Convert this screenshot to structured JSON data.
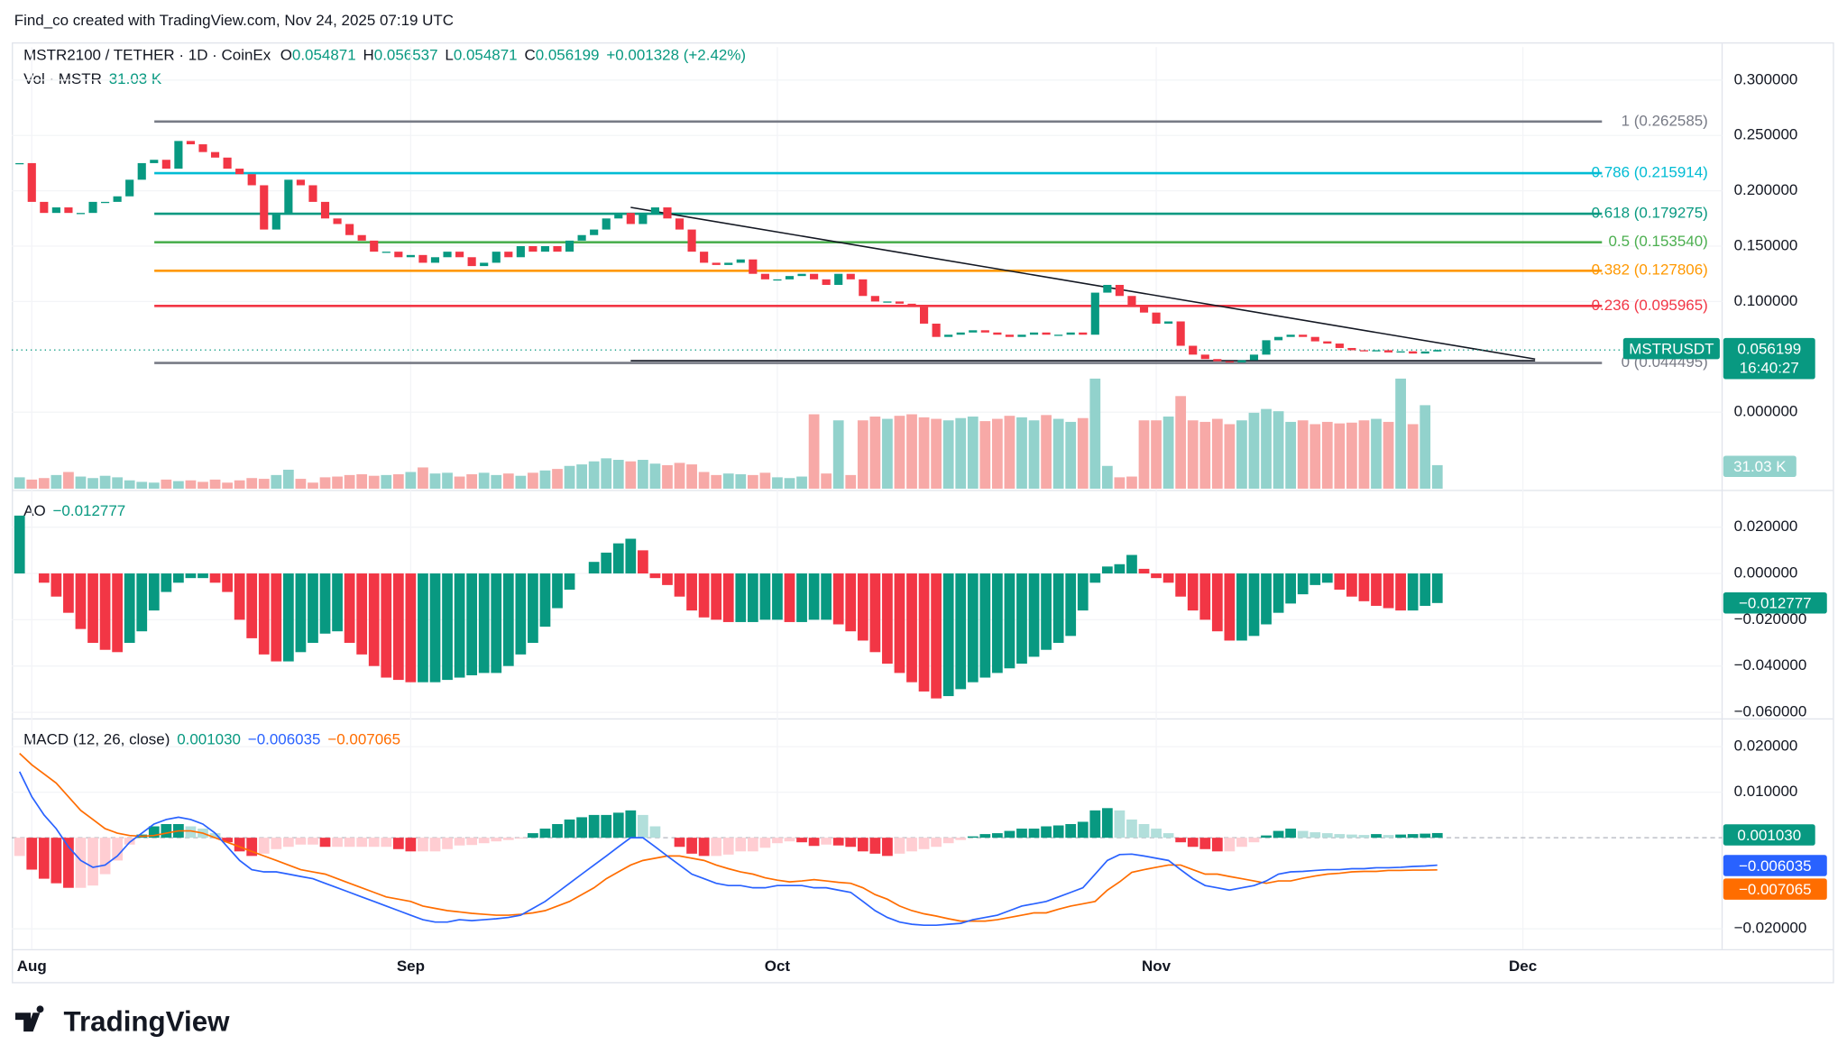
{
  "watermark": "Find_co created with TradingView.com, Nov 24, 2025 07:19 UTC",
  "logo": "TradingView",
  "chart_data": [
    {
      "type": "candlestick",
      "title": "MSTR2100 / TETHER · 1D · CoinEx",
      "ohlc_labels": [
        "O",
        "H",
        "L",
        "C"
      ],
      "ohlc": [
        0.054871,
        0.056537,
        0.054871,
        0.056199
      ],
      "change": "+0.001328 (+2.42%)",
      "symbol_tag": "MSTRUSDT",
      "price_tag": "0.056199",
      "countdown": "16:40:27",
      "up_color": "#089981",
      "down_color": "#f23645",
      "close": [
        0.225,
        0.19,
        0.18,
        0.185,
        0.18,
        0.18,
        0.19,
        0.19,
        0.195,
        0.21,
        0.225,
        0.228,
        0.22,
        0.245,
        0.242,
        0.235,
        0.23,
        0.22,
        0.215,
        0.205,
        0.165,
        0.18,
        0.21,
        0.205,
        0.19,
        0.175,
        0.17,
        0.16,
        0.155,
        0.145,
        0.145,
        0.14,
        0.142,
        0.135,
        0.14,
        0.145,
        0.14,
        0.132,
        0.135,
        0.145,
        0.14,
        0.15,
        0.145,
        0.15,
        0.145,
        0.155,
        0.16,
        0.165,
        0.175,
        0.18,
        0.17,
        0.18,
        0.185,
        0.175,
        0.165,
        0.145,
        0.135,
        0.133,
        0.135,
        0.138,
        0.125,
        0.12,
        0.12,
        0.123,
        0.125,
        0.12,
        0.115,
        0.125,
        0.12,
        0.105,
        0.1,
        0.1,
        0.098,
        0.095,
        0.08,
        0.068,
        0.07,
        0.072,
        0.074,
        0.072,
        0.07,
        0.068,
        0.07,
        0.072,
        0.07,
        0.07,
        0.072,
        0.07,
        0.108,
        0.115,
        0.105,
        0.095,
        0.09,
        0.08,
        0.082,
        0.06,
        0.052,
        0.048,
        0.046,
        0.045,
        0.047,
        0.052,
        0.065,
        0.068,
        0.07,
        0.068,
        0.064,
        0.062,
        0.058,
        0.056,
        0.055,
        0.056,
        0.054,
        0.055,
        0.053,
        0.054871,
        0.056199
      ],
      "xlim": [
        -1.6,
        139.3
      ],
      "xticks": [
        {
          "value": 1,
          "label": "Aug"
        },
        {
          "value": 32,
          "label": "Sep"
        },
        {
          "value": 62,
          "label": "Oct"
        },
        {
          "value": 93,
          "label": "Nov"
        },
        {
          "value": 123,
          "label": "Dec"
        }
      ],
      "ylim": [
        -0.0691,
        0.3298
      ],
      "yticks": [
        {
          "value": 0,
          "label": "0.000000"
        },
        {
          "value": 0.1,
          "label": "0.100000"
        },
        {
          "value": 0.15,
          "label": "0.150000"
        },
        {
          "value": 0.2,
          "label": "0.200000"
        },
        {
          "value": 0.25,
          "label": "0.250000"
        },
        {
          "value": 0.3,
          "label": "0.300000"
        }
      ],
      "fib_levels": [
        {
          "value": 0.262585,
          "label": "1 (0.262585)",
          "color": "#787b86"
        },
        {
          "value": 0.215914,
          "label": "0.786 (0.215914)",
          "color": "#00bcd4"
        },
        {
          "value": 0.179275,
          "label": "0.618 (0.179275)",
          "color": "#089981"
        },
        {
          "value": 0.15354,
          "label": "0.5 (0.153540)",
          "color": "#4caf50"
        },
        {
          "value": 0.127806,
          "label": "0.382 (0.127806)",
          "color": "#ff9800"
        },
        {
          "value": 0.095965,
          "label": "0.236 (0.095965)",
          "color": "#f23645"
        },
        {
          "value": 0.044495,
          "label": "0 (0.044495)",
          "color": "#787b86"
        }
      ],
      "trendlines": [
        {
          "x": [
            50,
            124
          ],
          "y": [
            0.185,
            0.048
          ]
        },
        {
          "x": [
            50,
            124
          ],
          "y": [
            0.0465,
            0.0465
          ]
        }
      ]
    },
    {
      "type": "volume",
      "title": "Vol · MSTR",
      "current_label": "31.03 K",
      "up_color": "#92d2cc",
      "down_color": "#f7a9a7",
      "ylim": [
        0,
        152000
      ],
      "values": [
        15000,
        12000,
        14000,
        18000,
        22000,
        16000,
        14000,
        17000,
        15000,
        11000,
        9000,
        8000,
        12000,
        10000,
        11000,
        9000,
        12000,
        8000,
        11000,
        14000,
        13000,
        18000,
        25000,
        13000,
        8000,
        15000,
        16000,
        18000,
        19000,
        17000,
        18000,
        19000,
        22000,
        28000,
        20000,
        21000,
        16000,
        19000,
        21000,
        18000,
        20000,
        17000,
        21000,
        24000,
        26000,
        30000,
        32000,
        36000,
        40000,
        38000,
        36000,
        38000,
        33000,
        31000,
        34000,
        32000,
        22000,
        18000,
        20000,
        19000,
        18000,
        21000,
        15000,
        14000,
        16000,
        98000,
        20000,
        90000,
        18000,
        90000,
        95000,
        92000,
        96000,
        98000,
        94000,
        92000,
        90000,
        93000,
        95000,
        89000,
        92000,
        96000,
        94000,
        90000,
        97000,
        92000,
        88000,
        93000,
        145000,
        30000,
        15000,
        16000,
        90000,
        90000,
        95000,
        122000,
        90000,
        88000,
        92000,
        85000,
        90000,
        100000,
        105000,
        102000,
        88000,
        90000,
        85000,
        88000,
        86000,
        87000,
        90000,
        92000,
        88000,
        145000,
        85000,
        110000,
        31030
      ]
    },
    {
      "type": "ao",
      "title": "AO",
      "current_label": "−0.012777",
      "up_color": "#089981",
      "down_color": "#f23645",
      "ylim": [
        -0.0626,
        0.0351
      ],
      "yticks": [
        {
          "value": 0.02,
          "label": "0.020000"
        },
        {
          "value": 0,
          "label": "0.000000"
        },
        {
          "value": -0.02,
          "label": "−0.020000"
        },
        {
          "value": -0.04,
          "label": "−0.040000"
        },
        {
          "value": -0.06,
          "label": "−0.060000"
        }
      ],
      "values": [
        0.025,
        0.0,
        -0.004,
        -0.01,
        -0.017,
        -0.024,
        -0.03,
        -0.033,
        -0.034,
        -0.03,
        -0.025,
        -0.016,
        -0.008,
        -0.004,
        -0.002,
        -0.002,
        -0.004,
        -0.008,
        -0.02,
        -0.028,
        -0.035,
        -0.038,
        -0.038,
        -0.034,
        -0.03,
        -0.026,
        -0.025,
        -0.03,
        -0.035,
        -0.04,
        -0.045,
        -0.046,
        -0.047,
        -0.047,
        -0.047,
        -0.046,
        -0.045,
        -0.044,
        -0.043,
        -0.043,
        -0.04,
        -0.035,
        -0.03,
        -0.023,
        -0.015,
        -0.007,
        0.0,
        0.005,
        0.009,
        0.013,
        0.015,
        0.01,
        -0.002,
        -0.005,
        -0.01,
        -0.016,
        -0.019,
        -0.02,
        -0.021,
        -0.021,
        -0.021,
        -0.02,
        -0.02,
        -0.021,
        -0.021,
        -0.02,
        -0.02,
        -0.022,
        -0.025,
        -0.029,
        -0.034,
        -0.039,
        -0.043,
        -0.047,
        -0.051,
        -0.054,
        -0.053,
        -0.05,
        -0.047,
        -0.045,
        -0.043,
        -0.041,
        -0.039,
        -0.036,
        -0.033,
        -0.03,
        -0.027,
        -0.016,
        -0.004,
        0.003,
        0.004,
        0.008,
        0.002,
        -0.002,
        -0.004,
        -0.01,
        -0.016,
        -0.02,
        -0.025,
        -0.029,
        -0.029,
        -0.027,
        -0.022,
        -0.017,
        -0.013,
        -0.009,
        -0.005,
        -0.004,
        -0.007,
        -0.01,
        -0.012,
        -0.014,
        -0.015,
        -0.016,
        -0.016,
        -0.014,
        -0.012777
      ]
    },
    {
      "type": "macd",
      "title": "MACD (12, 26, close)",
      "ylim": [
        -0.0242,
        0.0257
      ],
      "yticks": [
        {
          "value": 0.02,
          "label": "0.020000"
        },
        {
          "value": 0.01,
          "label": "0.010000"
        },
        {
          "value": -0.02,
          "label": "−0.020000"
        }
      ],
      "histogram": {
        "label": "0.001030",
        "color": "#089981",
        "colors": [
          "#089981",
          "#b2dfdb",
          "#ffcdd2",
          "#f23645"
        ],
        "values": [
          -0.004,
          -0.007,
          -0.009,
          -0.01,
          -0.011,
          -0.011,
          -0.0105,
          -0.008,
          -0.005,
          -0.0015,
          0.0007,
          0.0025,
          0.003,
          0.003,
          0.0025,
          0.002,
          0.001,
          -0.001,
          -0.003,
          -0.004,
          -0.0035,
          -0.0025,
          -0.002,
          -0.0015,
          -0.0015,
          -0.002,
          -0.002,
          -0.002,
          -0.002,
          -0.002,
          -0.002,
          -0.0025,
          -0.003,
          -0.003,
          -0.003,
          -0.0025,
          -0.0017,
          -0.0016,
          -0.0012,
          -0.0008,
          -0.0005,
          -0.0002,
          0.001,
          0.002,
          0.003,
          0.004,
          0.0045,
          0.005,
          0.005,
          0.0055,
          0.006,
          0.005,
          0.0025,
          0.0,
          -0.002,
          -0.0035,
          -0.004,
          -0.004,
          -0.0037,
          -0.003,
          -0.003,
          -0.0022,
          -0.0012,
          -0.0008,
          -0.001,
          -0.0018,
          -0.0015,
          -0.0017,
          -0.002,
          -0.003,
          -0.0035,
          -0.004,
          -0.0035,
          -0.003,
          -0.0025,
          -0.002,
          -0.0012,
          -0.0005,
          0.0003,
          0.0008,
          0.001,
          0.0015,
          0.002,
          0.002,
          0.0025,
          0.0027,
          0.003,
          0.0035,
          0.006,
          0.0065,
          0.006,
          0.004,
          0.003,
          0.002,
          0.001,
          -0.001,
          -0.002,
          -0.0025,
          -0.003,
          -0.003,
          -0.002,
          -0.001,
          0.0005,
          0.0015,
          0.002,
          0.0015,
          0.0012,
          0.001,
          0.0008,
          0.0007,
          0.0006,
          0.0008,
          0.0006,
          0.0007,
          0.0008,
          0.0009,
          0.00103
        ]
      },
      "macd": {
        "label": "−0.006035",
        "color": "#2962ff",
        "values": [
          0.0145,
          0.009,
          0.005,
          0.002,
          -0.002,
          -0.005,
          -0.0065,
          -0.006,
          -0.004,
          -0.001,
          0.001,
          0.003,
          0.004,
          0.0045,
          0.004,
          0.003,
          0.001,
          -0.002,
          -0.005,
          -0.007,
          -0.0075,
          -0.0075,
          -0.008,
          -0.0085,
          -0.009,
          -0.01,
          -0.011,
          -0.012,
          -0.013,
          -0.014,
          -0.015,
          -0.016,
          -0.017,
          -0.018,
          -0.0185,
          -0.0185,
          -0.018,
          -0.0182,
          -0.018,
          -0.0178,
          -0.0175,
          -0.017,
          -0.0155,
          -0.014,
          -0.012,
          -0.01,
          -0.008,
          -0.006,
          -0.004,
          -0.002,
          0.0,
          0.0,
          -0.002,
          -0.004,
          -0.006,
          -0.008,
          -0.009,
          -0.01,
          -0.0105,
          -0.0105,
          -0.011,
          -0.011,
          -0.0105,
          -0.0105,
          -0.0105,
          -0.011,
          -0.011,
          -0.0115,
          -0.012,
          -0.014,
          -0.016,
          -0.0175,
          -0.0185,
          -0.019,
          -0.0192,
          -0.0192,
          -0.019,
          -0.0188,
          -0.018,
          -0.0175,
          -0.017,
          -0.016,
          -0.015,
          -0.0145,
          -0.014,
          -0.013,
          -0.012,
          -0.011,
          -0.008,
          -0.005,
          -0.0037,
          -0.0036,
          -0.004,
          -0.0045,
          -0.005,
          -0.007,
          -0.009,
          -0.0105,
          -0.011,
          -0.0115,
          -0.011,
          -0.0105,
          -0.0095,
          -0.008,
          -0.0075,
          -0.0074,
          -0.0072,
          -0.007,
          -0.007,
          -0.0068,
          -0.0068,
          -0.0066,
          -0.0066,
          -0.0065,
          -0.0063,
          -0.0062,
          -0.006035
        ]
      },
      "signal": {
        "label": "−0.007065",
        "color": "#ff6d00",
        "values": [
          0.0185,
          0.016,
          0.014,
          0.012,
          0.009,
          0.006,
          0.004,
          0.002,
          0.001,
          0.0005,
          0.0003,
          0.0005,
          0.001,
          0.0015,
          0.0015,
          0.001,
          0.0,
          -0.001,
          -0.002,
          -0.003,
          -0.004,
          -0.005,
          -0.006,
          -0.007,
          -0.0075,
          -0.008,
          -0.009,
          -0.01,
          -0.011,
          -0.012,
          -0.013,
          -0.0135,
          -0.014,
          -0.015,
          -0.0155,
          -0.016,
          -0.0163,
          -0.0166,
          -0.0168,
          -0.017,
          -0.017,
          -0.0168,
          -0.0165,
          -0.016,
          -0.015,
          -0.014,
          -0.0125,
          -0.011,
          -0.009,
          -0.0075,
          -0.006,
          -0.005,
          -0.0045,
          -0.004,
          -0.004,
          -0.0045,
          -0.005,
          -0.006,
          -0.0068,
          -0.0075,
          -0.008,
          -0.0088,
          -0.0093,
          -0.0097,
          -0.0095,
          -0.0092,
          -0.0095,
          -0.0098,
          -0.01,
          -0.011,
          -0.0125,
          -0.0135,
          -0.015,
          -0.016,
          -0.0167,
          -0.0172,
          -0.0178,
          -0.0183,
          -0.0183,
          -0.0183,
          -0.018,
          -0.0175,
          -0.017,
          -0.0165,
          -0.0165,
          -0.0157,
          -0.015,
          -0.0145,
          -0.014,
          -0.0115,
          -0.0097,
          -0.0076,
          -0.007,
          -0.0065,
          -0.006,
          -0.006,
          -0.007,
          -0.008,
          -0.008,
          -0.0085,
          -0.009,
          -0.0095,
          -0.01,
          -0.0095,
          -0.0095,
          -0.0089,
          -0.0084,
          -0.008,
          -0.0078,
          -0.0075,
          -0.0074,
          -0.0074,
          -0.0072,
          -0.0072,
          -0.0071,
          -0.0071,
          -0.007065
        ]
      }
    }
  ]
}
